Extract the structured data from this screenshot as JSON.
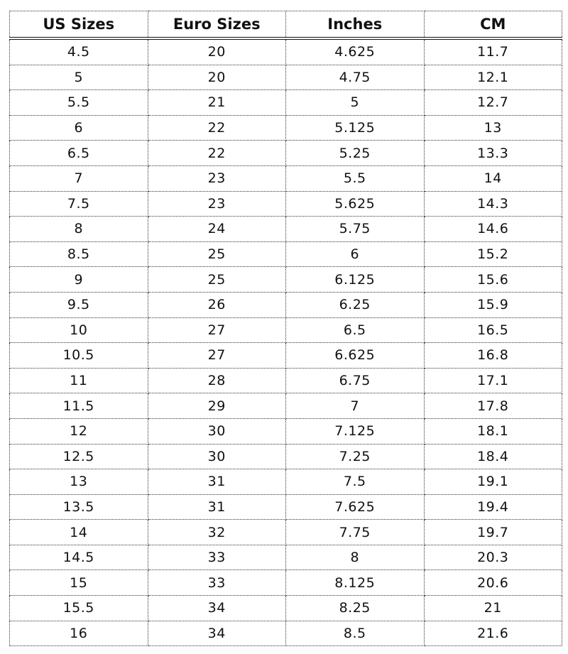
{
  "headers": [
    "US Sizes",
    "Euro Sizes",
    "Inches",
    "CM"
  ],
  "rows": [
    [
      "4.5",
      "20",
      "4.625",
      "11.7"
    ],
    [
      "5",
      "20",
      "4.75",
      "12.1"
    ],
    [
      "5.5",
      "21",
      "5",
      "12.7"
    ],
    [
      "6",
      "22",
      "5.125",
      "13"
    ],
    [
      "6.5",
      "22",
      "5.25",
      "13.3"
    ],
    [
      "7",
      "23",
      "5.5",
      "14"
    ],
    [
      "7.5",
      "23",
      "5.625",
      "14.3"
    ],
    [
      "8",
      "24",
      "5.75",
      "14.6"
    ],
    [
      "8.5",
      "25",
      "6",
      "15.2"
    ],
    [
      "9",
      "25",
      "6.125",
      "15.6"
    ],
    [
      "9.5",
      "26",
      "6.25",
      "15.9"
    ],
    [
      "10",
      "27",
      "6.5",
      "16.5"
    ],
    [
      "10.5",
      "27",
      "6.625",
      "16.8"
    ],
    [
      "11",
      "28",
      "6.75",
      "17.1"
    ],
    [
      "11.5",
      "29",
      "7",
      "17.8"
    ],
    [
      "12",
      "30",
      "7.125",
      "18.1"
    ],
    [
      "12.5",
      "30",
      "7.25",
      "18.4"
    ],
    [
      "13",
      "31",
      "7.5",
      "19.1"
    ],
    [
      "13.5",
      "31",
      "7.625",
      "19.4"
    ],
    [
      "14",
      "32",
      "7.75",
      "19.7"
    ],
    [
      "14.5",
      "33",
      "8",
      "20.3"
    ],
    [
      "15",
      "33",
      "8.125",
      "20.6"
    ],
    [
      "15.5",
      "34",
      "8.25",
      "21"
    ],
    [
      "16",
      "34",
      "8.5",
      "21.6"
    ]
  ]
}
